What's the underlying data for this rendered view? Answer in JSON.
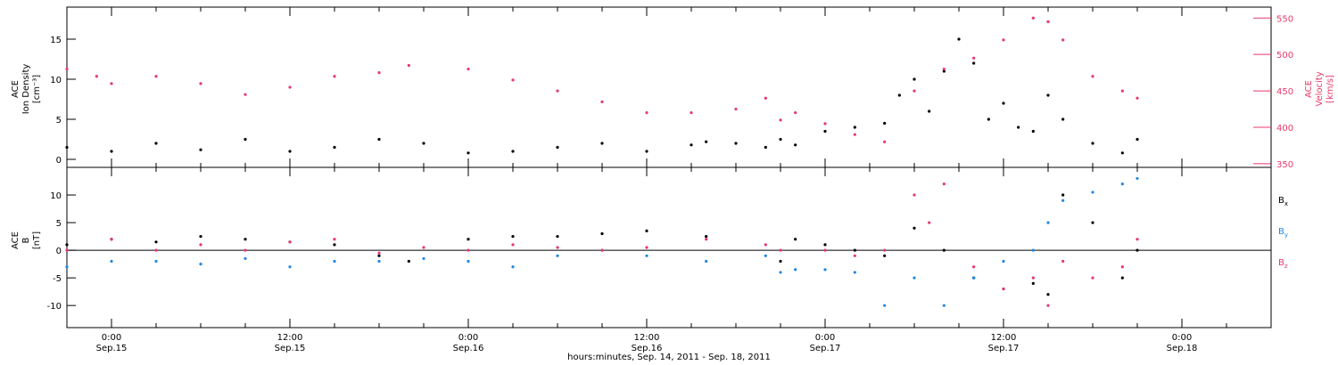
{
  "colors": {
    "black": "#000000",
    "pink": "#e8386a",
    "blue": "#1e88e5",
    "axis": "#000000"
  },
  "chart_data": [
    {
      "type": "scatter",
      "panel": "top",
      "ylabel_left": {
        "instrument": "ACE",
        "quantity": "Ion Density",
        "unit": "[cm⁻³]"
      },
      "ylabel_right": {
        "instrument": "ACE",
        "quantity": "Velocity",
        "unit": "[km/s]"
      },
      "ylim_left": [
        -1,
        19
      ],
      "yticks_left": [
        0,
        5,
        10,
        15
      ],
      "ylim_right": [
        345,
        565
      ],
      "yticks_right": [
        350,
        400,
        450,
        500,
        550
      ],
      "series": [
        {
          "axis": "left",
          "color": "black",
          "x": [
            -3,
            0,
            3,
            6,
            9,
            12,
            15,
            18,
            21,
            24,
            27,
            30,
            33,
            36,
            39,
            40,
            42,
            44,
            45,
            46,
            48,
            50,
            52,
            53,
            54,
            55,
            56,
            57,
            58,
            59,
            60,
            61,
            62,
            63,
            64,
            66,
            68,
            69
          ],
          "y": [
            1.5,
            1.0,
            2.0,
            1.2,
            2.5,
            1.0,
            1.5,
            2.5,
            2.0,
            0.8,
            1.0,
            1.5,
            2.0,
            1.0,
            1.8,
            2.2,
            2.0,
            1.5,
            2.5,
            1.8,
            3.5,
            4.0,
            4.5,
            8.0,
            10.0,
            6.0,
            11.0,
            15.0,
            12.0,
            5.0,
            7.0,
            4.0,
            3.5,
            8.0,
            5.0,
            2.0,
            0.8,
            2.5
          ]
        },
        {
          "axis": "right",
          "color": "pink",
          "x": [
            -3,
            -1,
            0,
            3,
            6,
            9,
            12,
            15,
            18,
            20,
            24,
            27,
            30,
            33,
            36,
            39,
            42,
            44,
            45,
            46,
            48,
            50,
            52,
            54,
            56,
            58,
            60,
            62,
            63,
            64,
            66,
            68,
            69
          ],
          "y": [
            480,
            470,
            460,
            470,
            460,
            445,
            455,
            470,
            475,
            485,
            480,
            465,
            450,
            435,
            420,
            420,
            425,
            440,
            410,
            420,
            405,
            390,
            380,
            450,
            480,
            495,
            520,
            550,
            545,
            520,
            470,
            450,
            440
          ]
        }
      ]
    },
    {
      "type": "scatter",
      "panel": "bottom",
      "ylabel_left": {
        "instrument": "ACE",
        "quantity": "B",
        "unit": "[nT]"
      },
      "ylim": [
        -14,
        15
      ],
      "yticks": [
        -10,
        -5,
        0,
        5,
        10
      ],
      "zero_line": true,
      "legend": [
        {
          "label": "B",
          "sub": "x",
          "color": "black"
        },
        {
          "label": "B",
          "sub": "y",
          "color": "blue"
        },
        {
          "label": "B",
          "sub": "z",
          "color": "pink"
        }
      ],
      "series": [
        {
          "name": "Bx",
          "color": "black",
          "x": [
            -3,
            0,
            3,
            6,
            9,
            12,
            15,
            18,
            20,
            24,
            27,
            30,
            33,
            36,
            40,
            45,
            46,
            48,
            50,
            52,
            54,
            56,
            58,
            60,
            62,
            63,
            64,
            66,
            68,
            69
          ],
          "y": [
            1.0,
            2.0,
            1.5,
            2.5,
            2.0,
            1.5,
            1.0,
            -1.0,
            -2.0,
            2.0,
            2.5,
            2.5,
            3.0,
            3.5,
            2.5,
            -2.0,
            2.0,
            1.0,
            0.0,
            -1.0,
            4.0,
            0.0,
            -5.0,
            -7.0,
            -6.0,
            -8.0,
            10.0,
            5.0,
            -5.0,
            0.0
          ]
        },
        {
          "name": "By",
          "color": "blue",
          "x": [
            -3,
            0,
            3,
            6,
            9,
            12,
            15,
            18,
            21,
            24,
            27,
            30,
            33,
            36,
            40,
            44,
            45,
            46,
            48,
            50,
            52,
            54,
            56,
            58,
            60,
            62,
            63,
            64,
            66,
            68,
            69
          ],
          "y": [
            -3.0,
            -2.0,
            -2.0,
            -2.5,
            -1.5,
            -3.0,
            -2.0,
            -2.0,
            -1.5,
            -2.0,
            -3.0,
            -1.0,
            0.0,
            -1.0,
            -2.0,
            -1.0,
            -4.0,
            -3.5,
            -3.5,
            -4.0,
            -10.0,
            -5.0,
            -10.0,
            -5.0,
            -2.0,
            0.0,
            5.0,
            9.0,
            10.5,
            12.0,
            13.0
          ]
        },
        {
          "name": "Bz",
          "color": "pink",
          "x": [
            -3,
            0,
            3,
            6,
            9,
            12,
            15,
            18,
            21,
            24,
            27,
            30,
            33,
            36,
            40,
            44,
            45,
            48,
            50,
            52,
            54,
            55,
            56,
            58,
            60,
            62,
            63,
            64,
            66,
            68,
            69
          ],
          "y": [
            0.0,
            2.0,
            0.0,
            1.0,
            0.0,
            1.5,
            2.0,
            -0.5,
            0.5,
            0.0,
            1.0,
            0.5,
            0.0,
            0.5,
            2.0,
            1.0,
            0.0,
            0.0,
            -1.0,
            0.0,
            10.0,
            5.0,
            12.0,
            -3.0,
            -7.0,
            -5.0,
            -10.0,
            -2.0,
            -5.0,
            -3.0,
            2.0
          ]
        }
      ]
    }
  ],
  "time_axis": {
    "xlim_hours": [
      -3,
      78
    ],
    "ticks": [
      {
        "hours": 0,
        "time": "0:00",
        "date": "Sep.15"
      },
      {
        "hours": 12,
        "time": "12:00",
        "date": "Sep.15"
      },
      {
        "hours": 24,
        "time": "0:00",
        "date": "Sep.16"
      },
      {
        "hours": 36,
        "time": "12:00",
        "date": "Sep.16"
      },
      {
        "hours": 48,
        "time": "0:00",
        "date": "Sep.17"
      },
      {
        "hours": 60,
        "time": "12:00",
        "date": "Sep.17"
      },
      {
        "hours": 72,
        "time": "0:00",
        "date": "Sep.18"
      }
    ],
    "label": "hours:minutes, Sep. 14, 2011 - Sep. 18, 2011"
  }
}
